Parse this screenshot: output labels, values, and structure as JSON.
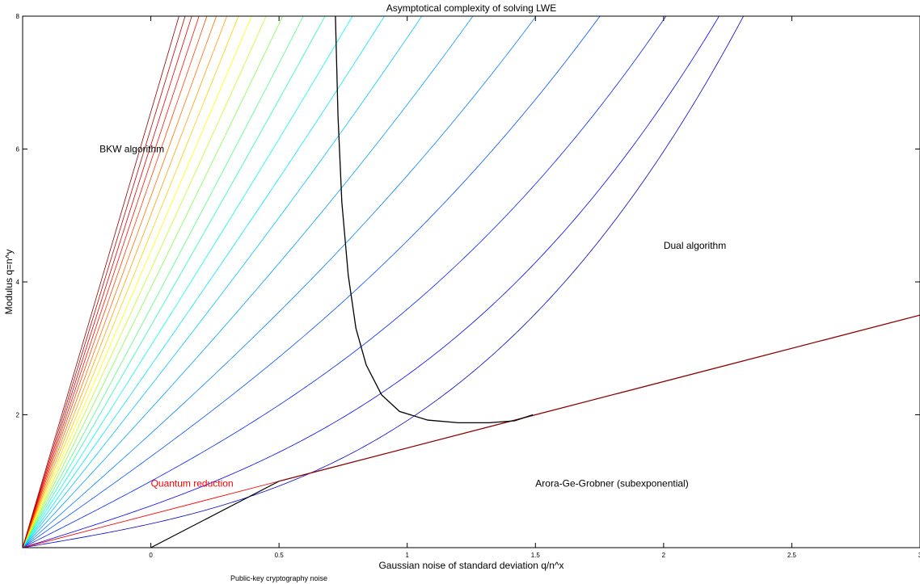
{
  "chart_data": {
    "type": "line",
    "title": "Asymptotical complexity of solving LWE",
    "xlabel": "Gaussian noise of standard deviation q/n^x",
    "ylabel": "Modulus q=n^y",
    "xlim": [
      -0.5,
      3.0
    ],
    "ylim": [
      0,
      8
    ],
    "xticks": [
      {
        "value": 0,
        "label": "0"
      },
      {
        "value": 0.5,
        "label": "0.5"
      },
      {
        "value": 1,
        "label": "1"
      },
      {
        "value": 1.5,
        "label": "1.5"
      },
      {
        "value": 2,
        "label": "2"
      },
      {
        "value": 2.5,
        "label": "2.5"
      },
      {
        "value": 3,
        "label": "3"
      }
    ],
    "yticks": [
      {
        "value": 2,
        "label": "2"
      },
      {
        "value": 4,
        "label": "4"
      },
      {
        "value": 6,
        "label": "6"
      },
      {
        "value": 8,
        "label": "8"
      }
    ],
    "grid": false,
    "legend": "none",
    "dual_family": {
      "description_source": "rainbow curve family",
      "k_values": [
        0.65,
        1.2,
        1.95,
        2.7,
        3.4,
        4.15,
        4.85,
        5.45,
        6.05,
        6.65,
        7.2,
        7.8,
        8.35,
        8.9,
        9.45,
        10.0,
        10.55,
        11.1,
        11.6,
        12.1,
        12.6,
        13.1
      ],
      "colors": [
        "#0000cc",
        "#0000ff",
        "#0020ff",
        "#0050ff",
        "#0080ff",
        "#00a0ff",
        "#00c8ff",
        "#00e8ff",
        "#00ffee",
        "#20ffb0",
        "#50ff80",
        "#80ff50",
        "#c0ff20",
        "#ffff00",
        "#ffd000",
        "#ffa000",
        "#ff7000",
        "#ff4000",
        "#ff1000",
        "#e00000",
        "#c00000",
        "#900000"
      ]
    },
    "arora_ge_line": {
      "color": "#8b0000",
      "points": [
        [
          0.5,
          1.0
        ],
        [
          3.0,
          3.5
        ]
      ]
    },
    "public_key_line": {
      "color": "#000000",
      "points": [
        [
          0.0,
          0.0
        ],
        [
          0.5,
          1.0
        ]
      ]
    },
    "quantum_line": {
      "color": "#ff0000",
      "points": [
        [
          -0.5,
          0.0
        ],
        [
          0.5,
          1.0
        ]
      ]
    },
    "boundary_curve": {
      "color": "#000000",
      "points": [
        [
          0.72,
          8.0
        ],
        [
          0.73,
          6.5
        ],
        [
          0.745,
          5.2
        ],
        [
          0.77,
          4.1
        ],
        [
          0.8,
          3.3
        ],
        [
          0.84,
          2.75
        ],
        [
          0.9,
          2.3
        ],
        [
          0.97,
          2.05
        ],
        [
          1.08,
          1.92
        ],
        [
          1.2,
          1.88
        ],
        [
          1.32,
          1.88
        ],
        [
          1.42,
          1.91
        ],
        [
          1.49,
          2.0
        ]
      ]
    },
    "annotations": [
      {
        "text": "BKW algorithm",
        "x": -0.2,
        "y": 5.95,
        "color": "#000000"
      },
      {
        "text": "Dual algorithm",
        "x": 2.0,
        "y": 4.5,
        "color": "#000000"
      },
      {
        "text": "Arora-Ge-Grobner (subexponential)",
        "x": 1.5,
        "y": 0.92,
        "color": "#000000"
      },
      {
        "text": "Quantum reduction",
        "x": 0.0,
        "y": 0.92,
        "color": "#ff0000"
      }
    ],
    "below_axis_note": "Public-key cryptography noise"
  }
}
